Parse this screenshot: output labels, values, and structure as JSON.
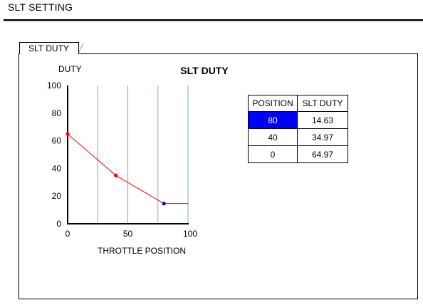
{
  "window": {
    "title": "SLT SETTING"
  },
  "tab": {
    "label": "SLT DUTY"
  },
  "table": {
    "headers": [
      "POSITION",
      "SLT DUTY"
    ],
    "rows": [
      {
        "position": "80",
        "duty": "14.63",
        "selected": true
      },
      {
        "position": "40",
        "duty": "34.97",
        "selected": false
      },
      {
        "position": "0",
        "duty": "64.97",
        "selected": false
      }
    ]
  },
  "colors": {
    "selection": "#0000ff",
    "line": "#ff0000",
    "point": "#ff0000",
    "selected_point": "#0000ff",
    "grid": "#6fb3b3"
  },
  "chart_data": {
    "type": "line",
    "title": "SLT DUTY",
    "xlabel": "THROTTLE POSITION",
    "ylabel": "DUTY",
    "xlim": [
      0,
      100
    ],
    "ylim": [
      0,
      100
    ],
    "x_ticks": [
      "0",
      "50",
      "100"
    ],
    "y_ticks": [
      "0",
      "20",
      "40",
      "60",
      "80",
      "100"
    ],
    "vertical_gridlines": [
      25,
      50,
      75,
      100
    ],
    "series": [
      {
        "x": [
          0,
          40,
          80,
          100
        ],
        "y": [
          64.97,
          34.97,
          14.63,
          14.63
        ]
      }
    ],
    "points": [
      {
        "x": 0,
        "y": 64.97,
        "selected": false
      },
      {
        "x": 40,
        "y": 34.97,
        "selected": false
      },
      {
        "x": 80,
        "y": 14.63,
        "selected": true
      }
    ]
  }
}
